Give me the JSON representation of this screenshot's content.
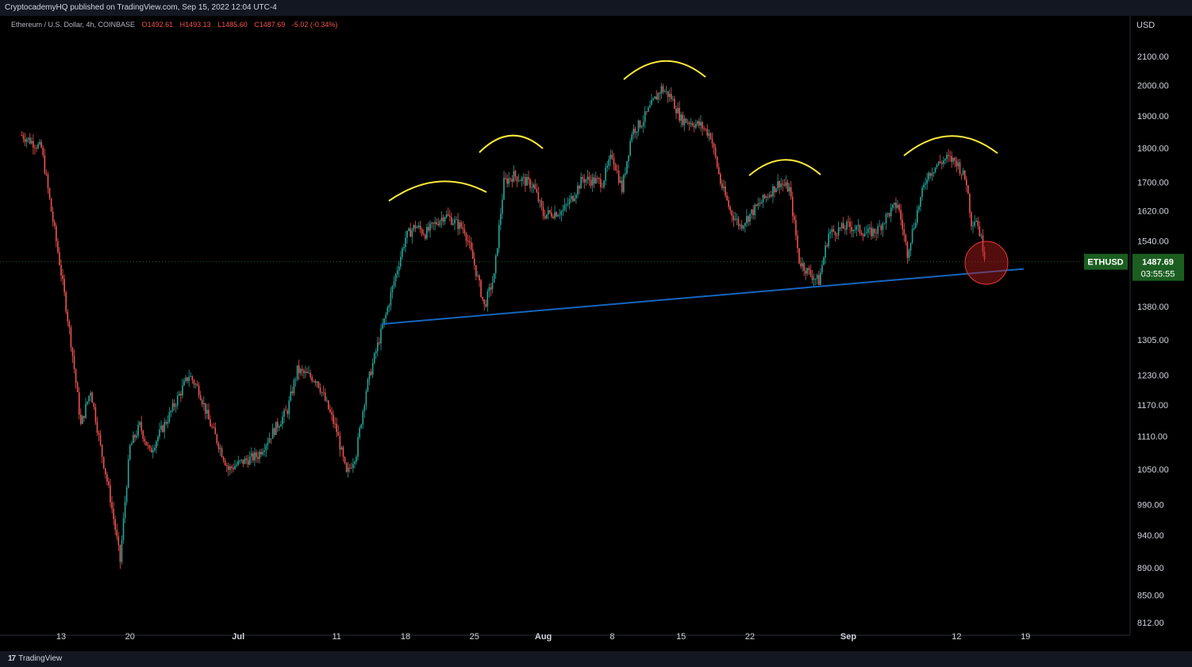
{
  "header": {
    "published": "CryptocademyHQ published on TradingView.com, Sep 15, 2022 12:04 UTC-4"
  },
  "legend": {
    "symbol": "Ethereum / U.S. Dollar, 4h, COINBASE",
    "open": "O1492.61",
    "high": "H1493.13",
    "low": "L1485.60",
    "close": "C1487.69",
    "change": "-5.02 (-0.34%)"
  },
  "footer": {
    "brand": "TradingView",
    "logo": "17"
  },
  "chart_data": {
    "type": "candlestick",
    "currency_label": "USD",
    "y_ticks": [
      "2100.00",
      "2000.00",
      "1900.00",
      "1800.00",
      "1700.00",
      "1620.00",
      "1540.00",
      "1380.00",
      "1305.00",
      "1230.00",
      "1170.00",
      "1110.00",
      "1050.00",
      "990.00",
      "940.00",
      "890.00",
      "850.00",
      "812.00"
    ],
    "x_ticks": [
      "13",
      "20",
      "Jul",
      "11",
      "18",
      "25",
      "Aug",
      "8",
      "15",
      "22",
      "Sep",
      "12",
      "19"
    ],
    "price_marker": {
      "symbol": "ETHUSD",
      "price": "1487.69",
      "countdown": "03:55:55"
    },
    "colors": {
      "up": "#26a69a",
      "down": "#ef5350",
      "trendline": "#1565c0",
      "annotation": "#ffeb3b",
      "highlight": "#b71c1c",
      "label_bg": "#1b5e20"
    },
    "price_path": [
      {
        "t": "Jun 9",
        "p": 1840
      },
      {
        "t": "Jun 11",
        "p": 1800
      },
      {
        "t": "Jun 12",
        "p": 1620
      },
      {
        "t": "Jun 13",
        "p": 1460
      },
      {
        "t": "Jun 14",
        "p": 1300
      },
      {
        "t": "Jun 15",
        "p": 1130
      },
      {
        "t": "Jun 16",
        "p": 1200
      },
      {
        "t": "Jun 17",
        "p": 1090
      },
      {
        "t": "Jun 18",
        "p": 1000
      },
      {
        "t": "Jun 19",
        "p": 900
      },
      {
        "t": "Jun 20",
        "p": 1090
      },
      {
        "t": "Jun 21",
        "p": 1130
      },
      {
        "t": "Jun 22",
        "p": 1080
      },
      {
        "t": "Jun 24",
        "p": 1150
      },
      {
        "t": "Jun 26",
        "p": 1230
      },
      {
        "t": "Jun 27",
        "p": 1200
      },
      {
        "t": "Jun 28",
        "p": 1140
      },
      {
        "t": "Jun 30",
        "p": 1050
      },
      {
        "t": "Jul 1",
        "p": 1060
      },
      {
        "t": "Jul 3",
        "p": 1075
      },
      {
        "t": "Jul 6",
        "p": 1160
      },
      {
        "t": "Jul 7",
        "p": 1240
      },
      {
        "t": "Jul 9",
        "p": 1220
      },
      {
        "t": "Jul 11",
        "p": 1120
      },
      {
        "t": "Jul 12",
        "p": 1040
      },
      {
        "t": "Jul 13",
        "p": 1080
      },
      {
        "t": "Jul 14",
        "p": 1200
      },
      {
        "t": "Jul 16",
        "p": 1360
      },
      {
        "t": "Jul 18",
        "p": 1550
      },
      {
        "t": "Jul 19",
        "p": 1580
      },
      {
        "t": "Jul 20",
        "p": 1560
      },
      {
        "t": "Jul 22",
        "p": 1610
      },
      {
        "t": "Jul 24",
        "p": 1570
      },
      {
        "t": "Jul 25",
        "p": 1480
      },
      {
        "t": "Jul 26",
        "p": 1380
      },
      {
        "t": "Jul 27",
        "p": 1450
      },
      {
        "t": "Jul 28",
        "p": 1700
      },
      {
        "t": "Jul 29",
        "p": 1720
      },
      {
        "t": "Jul 31",
        "p": 1690
      },
      {
        "t": "Aug 1",
        "p": 1610
      },
      {
        "t": "Aug 3",
        "p": 1620
      },
      {
        "t": "Aug 4",
        "p": 1660
      },
      {
        "t": "Aug 5",
        "p": 1710
      },
      {
        "t": "Aug 7",
        "p": 1700
      },
      {
        "t": "Aug 8",
        "p": 1780
      },
      {
        "t": "Aug 9",
        "p": 1680
      },
      {
        "t": "Aug 10",
        "p": 1850
      },
      {
        "t": "Aug 11",
        "p": 1880
      },
      {
        "t": "Aug 13",
        "p": 1990
      },
      {
        "t": "Aug 14",
        "p": 1960
      },
      {
        "t": "Aug 15",
        "p": 1890
      },
      {
        "t": "Aug 17",
        "p": 1870
      },
      {
        "t": "Aug 18",
        "p": 1840
      },
      {
        "t": "Aug 19",
        "p": 1700
      },
      {
        "t": "Aug 20",
        "p": 1620
      },
      {
        "t": "Aug 21",
        "p": 1580
      },
      {
        "t": "Aug 23",
        "p": 1640
      },
      {
        "t": "Aug 25",
        "p": 1700
      },
      {
        "t": "Aug 26",
        "p": 1680
      },
      {
        "t": "Aug 27",
        "p": 1490
      },
      {
        "t": "Aug 28",
        "p": 1460
      },
      {
        "t": "Aug 29",
        "p": 1440
      },
      {
        "t": "Aug 30",
        "p": 1560
      },
      {
        "t": "Sep 1",
        "p": 1580
      },
      {
        "t": "Sep 3",
        "p": 1560
      },
      {
        "t": "Sep 4",
        "p": 1570
      },
      {
        "t": "Sep 5",
        "p": 1610
      },
      {
        "t": "Sep 6",
        "p": 1640
      },
      {
        "t": "Sep 7",
        "p": 1510
      },
      {
        "t": "Sep 8",
        "p": 1620
      },
      {
        "t": "Sep 9",
        "p": 1720
      },
      {
        "t": "Sep 10",
        "p": 1750
      },
      {
        "t": "Sep 11",
        "p": 1770
      },
      {
        "t": "Sep 12",
        "p": 1760
      },
      {
        "t": "Sep 13",
        "p": 1700
      },
      {
        "t": "Sep 13b",
        "p": 1590
      },
      {
        "t": "Sep 14",
        "p": 1600
      },
      {
        "t": "Sep 15",
        "p": 1487.69
      }
    ]
  }
}
